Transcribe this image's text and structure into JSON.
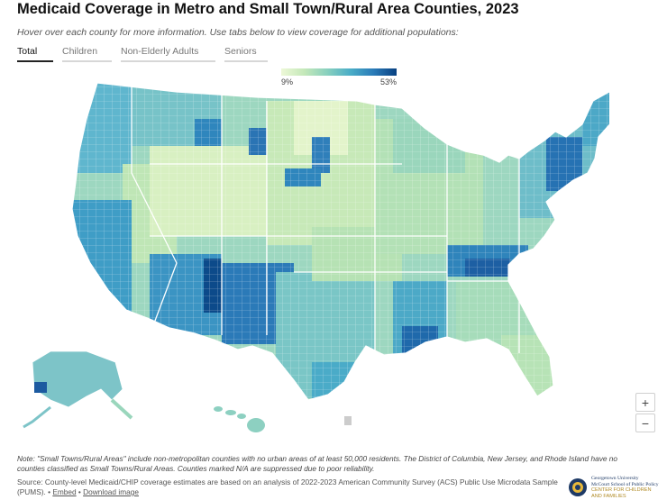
{
  "header": {
    "title": "Medicaid Coverage in Metro and Small Town/Rural Area Counties, 2023",
    "subtitle": "Hover over each county for more information. Use tabs below to view coverage for additional populations:"
  },
  "tabs": [
    {
      "label": "Total",
      "active": true
    },
    {
      "label": "Children",
      "active": false
    },
    {
      "label": "Non-Elderly Adults",
      "active": false
    },
    {
      "label": "Seniors",
      "active": false
    }
  ],
  "legend": {
    "min_label": "9%",
    "max_label": "53%",
    "colors": [
      "#edf8d7",
      "#c4e8b9",
      "#88d0be",
      "#4aadc7",
      "#2a7bb8",
      "#084081"
    ]
  },
  "map": {
    "value_range": [
      9,
      53
    ],
    "high_coverage_regions": [
      "Arizona",
      "New Mexico",
      "California",
      "Louisiana",
      "Kentucky",
      "New York",
      "Oregon",
      "Montana",
      "South Dakota"
    ],
    "low_coverage_regions": [
      "Nebraska",
      "Kansas",
      "Utah",
      "Wyoming",
      "North Dakota",
      "Iowa"
    ],
    "suppressed_color": "#cccccc"
  },
  "zoom": {
    "in_label": "+",
    "out_label": "−"
  },
  "footer": {
    "note": "Note: \"Small Towns/Rural Areas\" include non-metropolitan counties with no urban areas of at least 50,000 residents. The District of Columbia, New Jersey, and Rhode Island have no counties classified as Small Towns/Rural Areas. Counties marked N/A are suppressed due to poor reliability.",
    "source": "Source: County-level Medicaid/CHIP coverage estimates are based on an analysis of 2022-2023 American Community Survey (ACS) Public Use Microdata Sample (PUMS).",
    "embed_label": "Embed",
    "download_label": "Download image"
  },
  "logo": {
    "line1": "Georgetown University",
    "line2": "McCourt School of Public Policy",
    "line3": "CENTER FOR CHILDREN",
    "line4": "AND FAMILIES"
  }
}
